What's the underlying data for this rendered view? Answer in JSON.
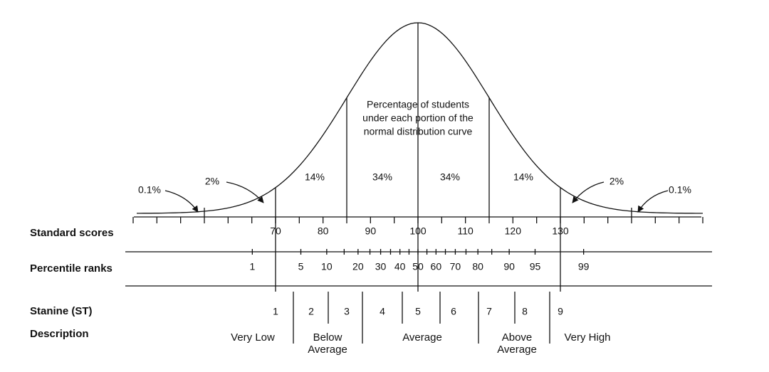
{
  "curve_note": [
    "Percentage of students",
    "under each portion of the",
    "normal distribution curve"
  ],
  "percentages": [
    "0.1%",
    "2%",
    "14%",
    "34%",
    "34%",
    "14%",
    "2%",
    "0.1%"
  ],
  "row_labels": [
    "Standard scores",
    "Percentile ranks",
    "Stanine (ST)",
    "Description"
  ],
  "standard_scores": [
    70,
    80,
    90,
    100,
    110,
    120,
    130
  ],
  "percentile_ranks": [
    1,
    5,
    10,
    20,
    30,
    40,
    50,
    60,
    70,
    80,
    90,
    95,
    99
  ],
  "stanines": [
    1,
    2,
    3,
    4,
    5,
    6,
    7,
    8,
    9
  ],
  "descriptions": [
    [
      "Very Low"
    ],
    [
      "Below",
      "Average"
    ],
    [
      "Average"
    ],
    [
      "Above",
      "Average"
    ],
    [
      "Very High"
    ]
  ]
}
